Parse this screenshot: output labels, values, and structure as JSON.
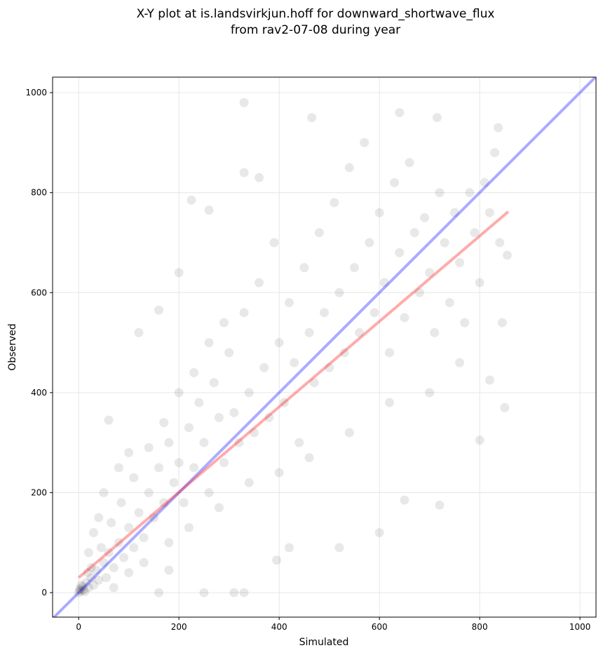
{
  "chart_data": {
    "type": "scatter",
    "title": [
      "X-Y plot at is.landsvirkjun.hoff for downward_shortwave_flux",
      "from rav2-07-08 during year"
    ],
    "xlabel": "Simulated",
    "ylabel": "Observed",
    "xlim": [
      -52,
      1032
    ],
    "ylim": [
      -49,
      1031
    ],
    "xticks": [
      0,
      200,
      400,
      600,
      800,
      1000
    ],
    "yticks": [
      0,
      200,
      400,
      600,
      800,
      1000
    ],
    "grid": true,
    "color": "rgba(0,0,0,0.09)",
    "x": [
      0,
      2,
      5,
      8,
      10,
      15,
      20,
      25,
      30,
      35,
      40,
      50,
      55,
      60,
      70,
      80,
      90,
      100,
      110,
      120,
      130,
      140,
      150,
      160,
      170,
      180,
      190,
      200,
      210,
      220,
      230,
      240,
      250,
      260,
      270,
      280,
      290,
      300,
      310,
      320,
      330,
      340,
      350,
      360,
      370,
      380,
      390,
      400,
      410,
      420,
      430,
      440,
      450,
      460,
      470,
      480,
      490,
      500,
      510,
      520,
      530,
      540,
      550,
      560,
      570,
      580,
      590,
      600,
      610,
      620,
      630,
      640,
      650,
      660,
      670,
      680,
      690,
      700,
      710,
      720,
      730,
      740,
      750,
      760,
      770,
      780,
      790,
      800,
      810,
      820,
      830,
      840,
      850,
      837,
      640,
      330,
      465,
      715,
      225,
      260,
      360,
      330,
      160,
      120,
      60,
      200,
      180,
      250,
      310,
      330,
      160,
      420,
      520,
      600,
      650,
      720,
      395,
      800,
      820,
      845,
      855,
      50,
      80,
      100,
      30,
      20,
      40,
      70,
      100,
      130,
      180,
      220,
      280,
      340,
      400,
      460,
      540,
      620,
      700,
      760,
      5,
      12,
      18,
      3,
      25,
      45,
      65,
      85,
      110,
      140,
      170,
      200,
      230,
      260,
      290
    ],
    "y": [
      0,
      5,
      3,
      12,
      6,
      20,
      10,
      30,
      15,
      45,
      25,
      60,
      30,
      80,
      50,
      100,
      70,
      130,
      90,
      160,
      110,
      200,
      150,
      250,
      180,
      300,
      220,
      260,
      180,
      330,
      250,
      380,
      300,
      200,
      420,
      350,
      260,
      480,
      360,
      300,
      560,
      400,
      320,
      620,
      450,
      350,
      700,
      500,
      380,
      580,
      460,
      300,
      650,
      520,
      420,
      720,
      560,
      450,
      780,
      600,
      480,
      850,
      650,
      520,
      900,
      700,
      560,
      760,
      620,
      480,
      820,
      680,
      550,
      860,
      720,
      600,
      750,
      640,
      520,
      800,
      700,
      580,
      760,
      660,
      540,
      800,
      720,
      620,
      820,
      760,
      880,
      700,
      370,
      930,
      960,
      980,
      950,
      950,
      785,
      765,
      830,
      840,
      565,
      520,
      345,
      640,
      45,
      0,
      0,
      0,
      0,
      90,
      90,
      120,
      185,
      175,
      65,
      305,
      425,
      540,
      675,
      200,
      250,
      280,
      120,
      80,
      150,
      10,
      40,
      60,
      100,
      130,
      170,
      220,
      240,
      270,
      320,
      380,
      400,
      460,
      15,
      2,
      40,
      8,
      50,
      90,
      140,
      180,
      230,
      290,
      340,
      400,
      440,
      500,
      540
    ],
    "lines": [
      {
        "color": "rgba(0,0,255,0.33)",
        "x": [
          -52,
          1032
        ],
        "y": [
          -52,
          1032
        ]
      },
      {
        "color": "rgba(255,0,0,0.33)",
        "x": [
          0,
          857
        ],
        "y": [
          30,
          762
        ]
      }
    ]
  }
}
